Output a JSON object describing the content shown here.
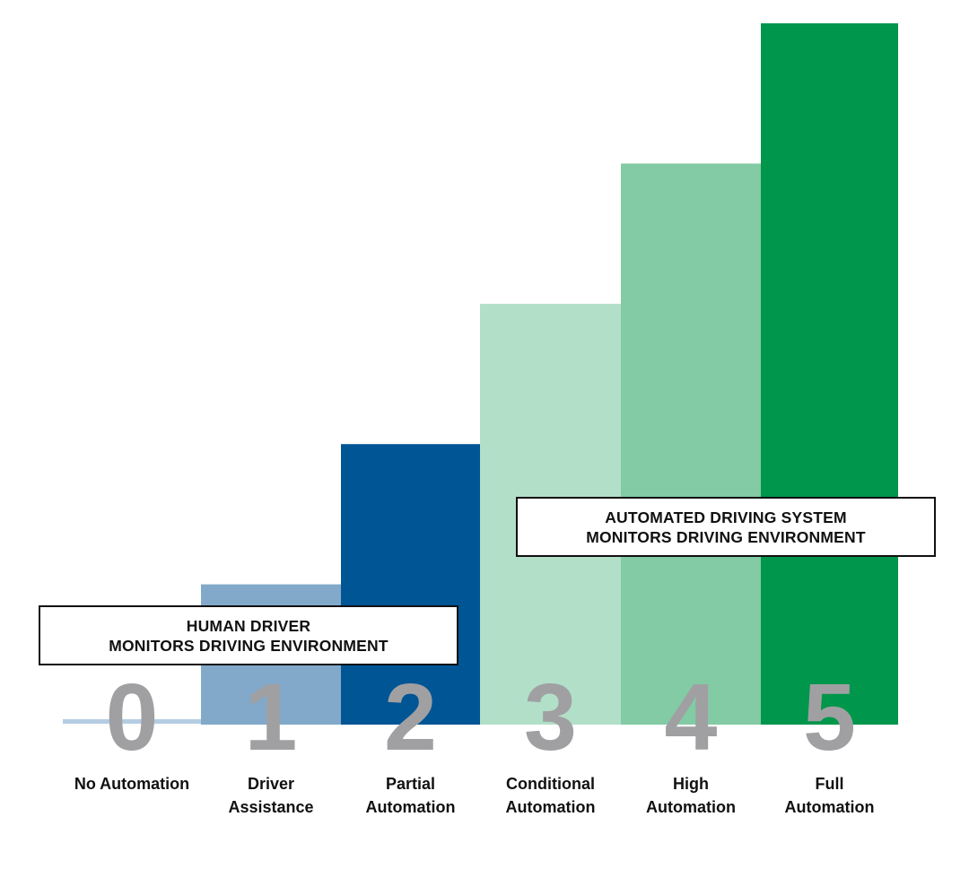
{
  "chart_data": {
    "type": "bar",
    "categories": [
      "0",
      "1",
      "2",
      "3",
      "4",
      "5"
    ],
    "category_labels": [
      [
        "No Automation"
      ],
      [
        "Driver",
        "Assistance"
      ],
      [
        "Partial",
        "Automation"
      ],
      [
        "Conditional",
        "Automation"
      ],
      [
        "High",
        "Automation"
      ],
      [
        "Full",
        "Automation"
      ]
    ],
    "values": [
      0,
      1,
      2,
      3,
      4,
      5
    ],
    "ylim": [
      0,
      5
    ],
    "colors": [
      "#b4cde3",
      "#82a9c9",
      "#005595",
      "#b2dfc8",
      "#82cba4",
      "#00964b"
    ],
    "digit_color": "#a0a0a3",
    "grid": false,
    "annotations": [
      {
        "lines": [
          "HUMAN DRIVER",
          "MONITORS DRIVING ENVIRONMENT"
        ],
        "spans": [
          "0",
          "1",
          "2"
        ]
      },
      {
        "lines": [
          "AUTOMATED DRIVING SYSTEM",
          "MONITORS DRIVING ENVIRONMENT"
        ],
        "spans": [
          "3",
          "4",
          "5"
        ]
      }
    ]
  }
}
